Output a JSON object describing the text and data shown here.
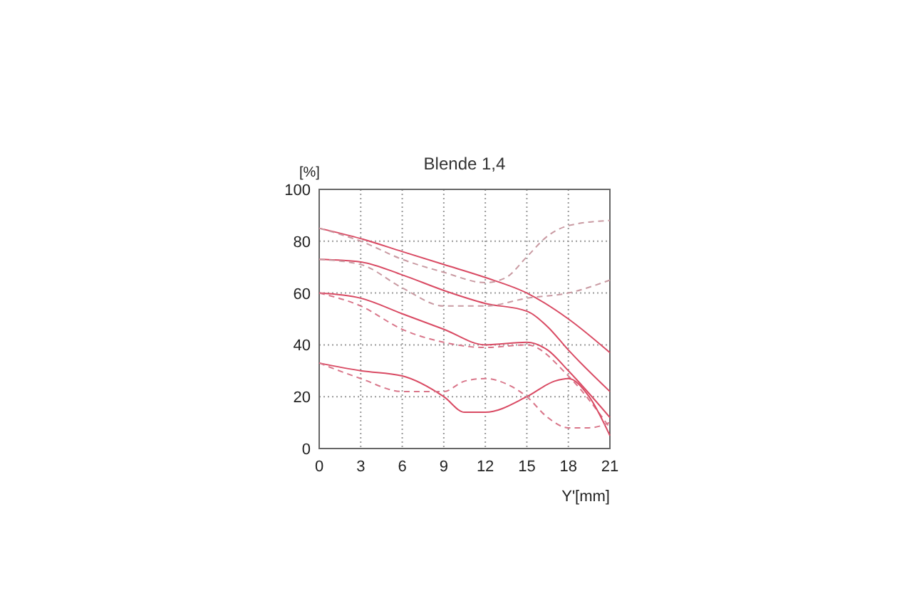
{
  "chart_data": {
    "type": "line",
    "title": "Blende 1,4",
    "xlabel": "Y'[mm]",
    "ylabel": "[%]",
    "xlim": [
      0,
      21
    ],
    "ylim": [
      0,
      100
    ],
    "xticks": [
      0,
      3,
      6,
      9,
      12,
      15,
      18,
      21
    ],
    "yticks": [
      0,
      20,
      40,
      60,
      80,
      100
    ],
    "grid": true,
    "marker": "none",
    "series": [
      {
        "color": "#d94a63",
        "line_style": "solid",
        "x": [
          0,
          3,
          6,
          9,
          12,
          15,
          18,
          21
        ],
        "values": [
          85,
          81,
          76,
          71,
          66,
          60,
          50,
          37
        ]
      },
      {
        "color": "#c99aa2",
        "line_style": "dashed",
        "x": [
          0,
          3,
          6,
          9,
          12,
          13.5,
          15,
          16.5,
          18,
          21
        ],
        "values": [
          85,
          80,
          73,
          68,
          64,
          66,
          74,
          82,
          86,
          88
        ]
      },
      {
        "color": "#d94a63",
        "line_style": "solid",
        "x": [
          0,
          3,
          6,
          9,
          12,
          15,
          16.5,
          18,
          21
        ],
        "values": [
          73,
          72,
          67,
          61,
          56,
          53,
          47,
          38,
          22
        ]
      },
      {
        "color": "#c99aa2",
        "line_style": "dashed",
        "x": [
          0,
          3,
          6,
          9,
          12,
          15,
          18,
          21
        ],
        "values": [
          73,
          71,
          62,
          55,
          55,
          58,
          60,
          65
        ]
      },
      {
        "color": "#d94a63",
        "line_style": "solid",
        "x": [
          0,
          3,
          6,
          9,
          12,
          15,
          16.5,
          18,
          21
        ],
        "values": [
          60,
          58,
          52,
          46,
          40,
          41,
          38,
          30,
          12
        ]
      },
      {
        "color": "#d9768a",
        "line_style": "dashed",
        "x": [
          0,
          3,
          6,
          9,
          12,
          15,
          18,
          21
        ],
        "values": [
          60,
          55,
          46,
          41,
          39,
          40,
          28,
          8
        ]
      },
      {
        "color": "#d94a63",
        "line_style": "solid",
        "x": [
          0,
          3,
          6,
          9,
          10.5,
          12,
          15,
          17,
          18,
          19.5,
          21
        ],
        "values": [
          33,
          30,
          28,
          20,
          14,
          14,
          20,
          26,
          27,
          20,
          5
        ]
      },
      {
        "color": "#d9768a",
        "line_style": "dashed",
        "x": [
          0,
          3,
          6,
          9,
          10.5,
          12,
          13.5,
          15,
          16.5,
          18,
          19.5,
          21
        ],
        "values": [
          33,
          27,
          22,
          22,
          26,
          27,
          25,
          20,
          12,
          8,
          8,
          10
        ]
      }
    ]
  }
}
